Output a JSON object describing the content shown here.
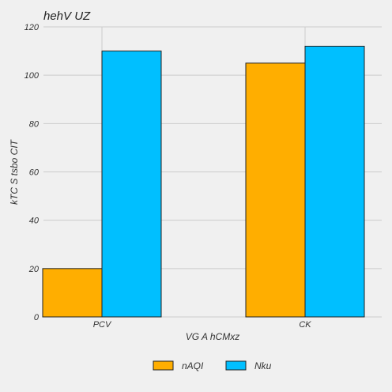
{
  "chart_data": {
    "type": "bar",
    "title": "hehV UZ",
    "xlabel": "VG A  hCMxz",
    "ylabel": "kTC S tsbo CIT",
    "categories": [
      "PCV",
      "CK"
    ],
    "ylim": [
      0,
      120
    ],
    "yticks": [
      0,
      20,
      40,
      60,
      80,
      100,
      120
    ],
    "grid": true,
    "legend_position": "bottom-center",
    "series": [
      {
        "name": "nAQI",
        "values": [
          20,
          105
        ],
        "color": "#ffae00"
      },
      {
        "name": "Nku",
        "values": [
          110,
          112
        ],
        "color": "#00bfff"
      }
    ]
  }
}
